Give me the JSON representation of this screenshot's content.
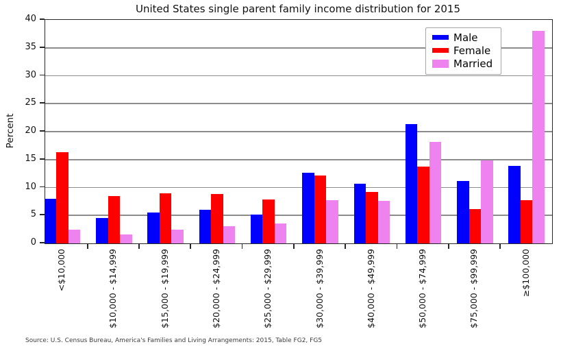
{
  "title": "United States single parent family income distribution for 2015",
  "source": "Source: U.S. Census Bureau, America's Families and Living Arrangements: 2015, Table FG2, FG5",
  "colors": {
    "male": "#0000ff",
    "female": "#ff0000",
    "married": "#ee82ee",
    "gridline": "#8c8c8c",
    "spine": "#262626"
  },
  "legend": {
    "position": "upper right",
    "items": [
      "Male",
      "Female",
      "Married"
    ]
  },
  "chart_data": {
    "type": "bar",
    "title": "United States single parent family income distribution for 2015",
    "xlabel": "",
    "ylabel": "Percent",
    "ylim": [
      0,
      40
    ],
    "ytick_step": 5,
    "yticks": [
      0,
      5,
      10,
      15,
      20,
      25,
      30,
      35,
      40
    ],
    "grid": "horizontal",
    "legend_position": "upper right",
    "categories": [
      "<$10,000",
      "$10,000 - $14,999",
      "$15,000 - $19,999",
      "$20,000 - $24,999",
      "$25,000 - $29,999",
      "$30,000 - $39,999",
      "$40,000 - $49,999",
      "$50,000 - $74,999",
      "$75,000 - $99,999",
      "≥$100,000"
    ],
    "series": [
      {
        "name": "Male",
        "color": "#0000ff",
        "values": [
          8.0,
          4.6,
          5.5,
          6.0,
          5.2,
          12.6,
          10.7,
          21.4,
          11.2,
          13.9
        ]
      },
      {
        "name": "Female",
        "color": "#ff0000",
        "values": [
          16.3,
          8.5,
          9.0,
          8.8,
          7.8,
          12.1,
          9.2,
          13.7,
          6.1,
          7.7
        ]
      },
      {
        "name": "Married",
        "color": "#ee82ee",
        "values": [
          2.5,
          1.6,
          2.4,
          3.1,
          3.5,
          7.7,
          7.6,
          18.2,
          14.9,
          38.0
        ]
      }
    ]
  }
}
